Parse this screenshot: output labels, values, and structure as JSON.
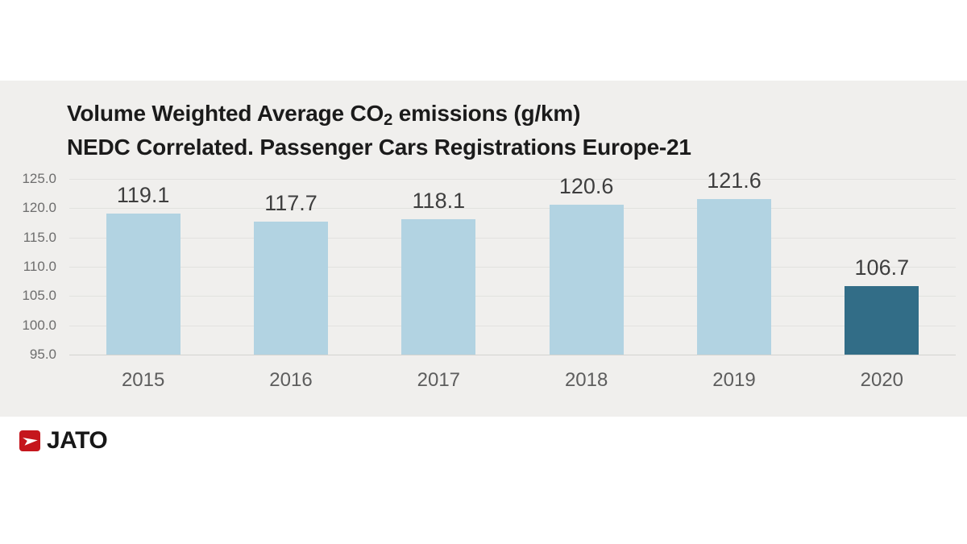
{
  "header": {
    "title_prefix": "Volume Weighted Average CO",
    "title_sub": "2",
    "title_suffix": " emissions (g/km)",
    "title_line2": "NEDC Correlated. Passenger Cars Registrations Europe-21"
  },
  "chart_data": {
    "type": "bar",
    "title": "Volume Weighted Average CO2 emissions (g/km) NEDC Correlated. Passenger Cars Registrations Europe-21",
    "categories": [
      "2015",
      "2016",
      "2017",
      "2018",
      "2019",
      "2020"
    ],
    "values": [
      119.1,
      117.7,
      118.1,
      120.6,
      121.6,
      106.7
    ],
    "value_labels": [
      "119.1",
      "117.7",
      "118.1",
      "120.6",
      "121.6",
      "106.7"
    ],
    "yticks": [
      125,
      120,
      115,
      110,
      105,
      100,
      95
    ],
    "ytick_labels": [
      "125.0",
      "120.0",
      "115.0",
      "110.0",
      "105.0",
      "100.0",
      "95.0"
    ],
    "ylim": [
      95,
      125
    ],
    "xlabel": "",
    "ylabel": "",
    "grid": true,
    "legend": false,
    "bar_color": "#b2d3e2",
    "highlight_color": "#326d87",
    "highlight_index": 5,
    "panel_background": "#f0efed"
  },
  "footer": {
    "logo_text": "JATO",
    "logo_color": "#c5161d"
  }
}
